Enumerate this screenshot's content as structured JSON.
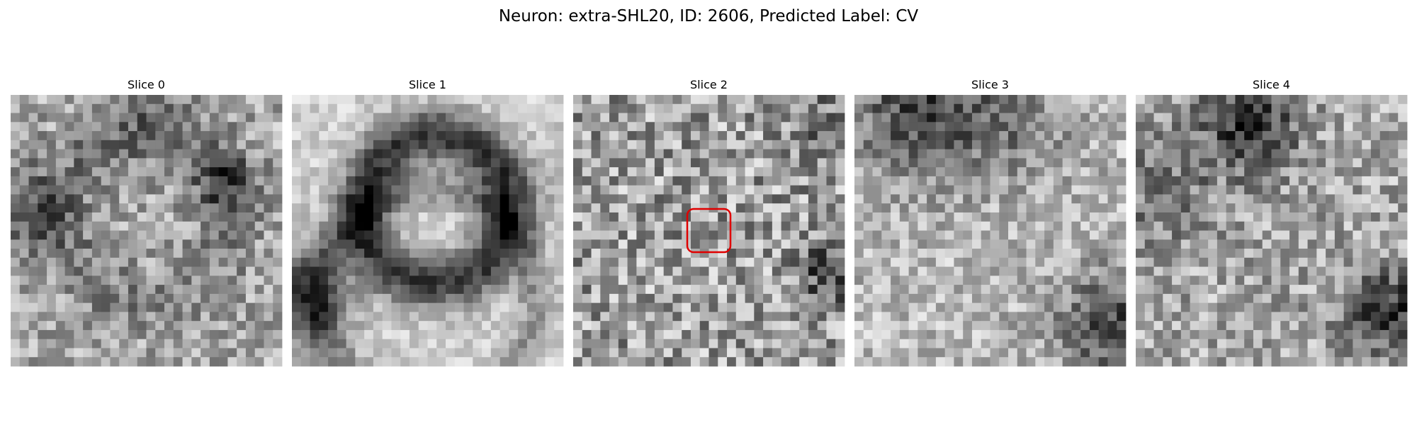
{
  "title": "Neuron: extra-SHL20, ID: 2606, Predicted Label: CV",
  "panels": [
    {
      "title": "Slice 0"
    },
    {
      "title": "Slice 1"
    },
    {
      "title": "Slice 2"
    },
    {
      "title": "Slice 3"
    },
    {
      "title": "Slice 4"
    }
  ]
}
